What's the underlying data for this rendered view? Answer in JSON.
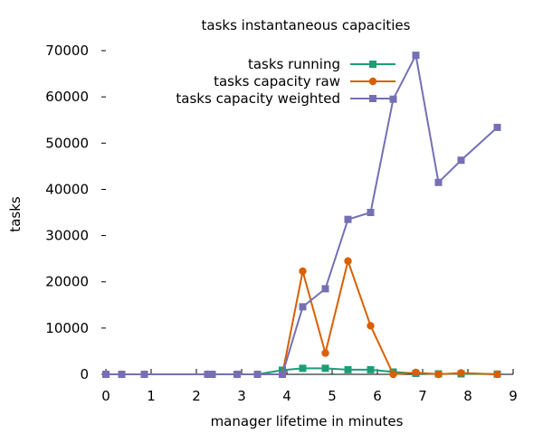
{
  "chart_data": {
    "type": "line",
    "title": "tasks instantaneous capacities",
    "xlabel": "manager lifetime in minutes",
    "ylabel": "tasks",
    "xlim": [
      0,
      9
    ],
    "ylim": [
      0,
      70000
    ],
    "xticks": [
      "0",
      "1",
      "2",
      "3",
      "4",
      "5",
      "6",
      "7",
      "8",
      "9"
    ],
    "yticks": [
      "0",
      "10000",
      "20000",
      "30000",
      "40000",
      "50000",
      "60000",
      "70000"
    ],
    "grid": false,
    "legend_position": "top-right",
    "series": [
      {
        "name": "tasks running",
        "color": "#1b9e77",
        "marker": "square",
        "x": [
          0,
          0.35,
          0.85,
          2.25,
          2.35,
          2.9,
          3.35,
          3.9,
          4.35,
          4.85,
          5.35,
          5.85,
          6.35,
          6.85,
          7.35,
          7.85,
          8.65
        ],
        "y": [
          0,
          0,
          0,
          0,
          0,
          0,
          0,
          900,
          1300,
          1300,
          1000,
          1000,
          500,
          200,
          100,
          100,
          50
        ]
      },
      {
        "name": "tasks capacity raw",
        "color": "#d95f02",
        "marker": "circle",
        "x": [
          0,
          0.35,
          0.85,
          2.25,
          2.35,
          2.9,
          3.35,
          3.9,
          4.35,
          4.85,
          5.35,
          5.85,
          6.35,
          6.85,
          7.35,
          7.85,
          8.65
        ],
        "y": [
          0,
          0,
          0,
          0,
          0,
          0,
          0,
          0,
          22300,
          4600,
          24500,
          10500,
          0,
          400,
          0,
          300,
          0
        ]
      },
      {
        "name": "tasks capacity weighted",
        "color": "#7570b3",
        "marker": "square",
        "x": [
          0,
          0.35,
          0.85,
          2.25,
          2.35,
          2.9,
          3.35,
          3.9,
          4.35,
          4.85,
          5.35,
          5.85,
          6.35,
          6.85,
          7.35,
          7.85,
          8.65
        ],
        "y": [
          0,
          0,
          0,
          0,
          0,
          0,
          0,
          0,
          14600,
          18500,
          33500,
          35000,
          59500,
          69000,
          41500,
          46300,
          53400
        ]
      }
    ]
  }
}
